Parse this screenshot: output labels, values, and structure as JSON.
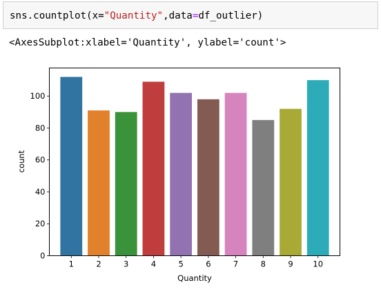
{
  "code_cell": {
    "func": "sns.countplot(x=",
    "arg_x": "\"Quantity\"",
    "sep": ",data",
    "eq": "=",
    "arg_data": "df_outlier)"
  },
  "output": {
    "repr": "<AxesSubplot:xlabel='Quantity', ylabel='count'>"
  },
  "chart_data": {
    "type": "bar",
    "categories": [
      "1",
      "2",
      "3",
      "4",
      "5",
      "6",
      "7",
      "8",
      "9",
      "10"
    ],
    "values": [
      112,
      91,
      90,
      109,
      102,
      98,
      102,
      85,
      92,
      110
    ],
    "colors": [
      "#3274a1",
      "#e1812c",
      "#3a923a",
      "#c03d3e",
      "#9372b2",
      "#845b53",
      "#d684bd",
      "#7f7f7f",
      "#a9aa35",
      "#2eabb8"
    ],
    "xlabel": "Quantity",
    "ylabel": "count",
    "ylim": [
      0,
      117.6
    ],
    "yticks": [
      0,
      20,
      40,
      60,
      80,
      100
    ],
    "grid": false
  }
}
